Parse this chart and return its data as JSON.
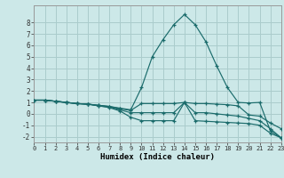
{
  "xlabel": "Humidex (Indice chaleur)",
  "background_color": "#cce8e8",
  "grid_color": "#aacccc",
  "line_color": "#1a6b6b",
  "x": [
    0,
    1,
    2,
    3,
    4,
    5,
    6,
    7,
    8,
    9,
    10,
    11,
    12,
    13,
    14,
    15,
    16,
    17,
    18,
    19,
    20,
    21,
    22,
    23
  ],
  "line_spike": [
    1.2,
    1.2,
    1.1,
    1.0,
    0.9,
    0.85,
    0.75,
    0.65,
    0.5,
    0.35,
    2.3,
    5.0,
    6.5,
    7.8,
    8.7,
    7.8,
    6.3,
    4.2,
    2.3,
    1.0,
    0.95,
    1.0,
    -1.5,
    -2.1
  ],
  "line_flat1": [
    1.2,
    1.2,
    1.1,
    1.0,
    0.9,
    0.85,
    0.75,
    0.65,
    0.45,
    0.3,
    0.9,
    0.9,
    0.9,
    0.9,
    1.0,
    0.9,
    0.9,
    0.85,
    0.8,
    0.7,
    -0.1,
    -0.2,
    -0.8,
    -1.3
  ],
  "line_flat2": [
    1.2,
    1.2,
    1.1,
    1.0,
    0.9,
    0.85,
    0.7,
    0.6,
    0.35,
    0.1,
    0.1,
    0.1,
    0.1,
    0.1,
    1.0,
    0.1,
    0.1,
    0.0,
    -0.1,
    -0.2,
    -0.4,
    -0.6,
    -1.3,
    -2.1
  ],
  "line_flat3": [
    1.2,
    1.2,
    1.1,
    1.0,
    0.9,
    0.85,
    0.7,
    0.55,
    0.25,
    -0.3,
    -0.6,
    -0.6,
    -0.6,
    -0.6,
    1.0,
    -0.6,
    -0.65,
    -0.7,
    -0.75,
    -0.8,
    -0.85,
    -1.0,
    -1.7,
    -2.1
  ],
  "xlim": [
    0,
    23
  ],
  "ylim": [
    -2.5,
    9.5
  ],
  "yticks": [
    -2,
    -1,
    0,
    1,
    2,
    3,
    4,
    5,
    6,
    7,
    8
  ],
  "xticks": [
    0,
    1,
    2,
    3,
    4,
    5,
    6,
    7,
    8,
    9,
    10,
    11,
    12,
    13,
    14,
    15,
    16,
    17,
    18,
    19,
    20,
    21,
    22,
    23
  ]
}
